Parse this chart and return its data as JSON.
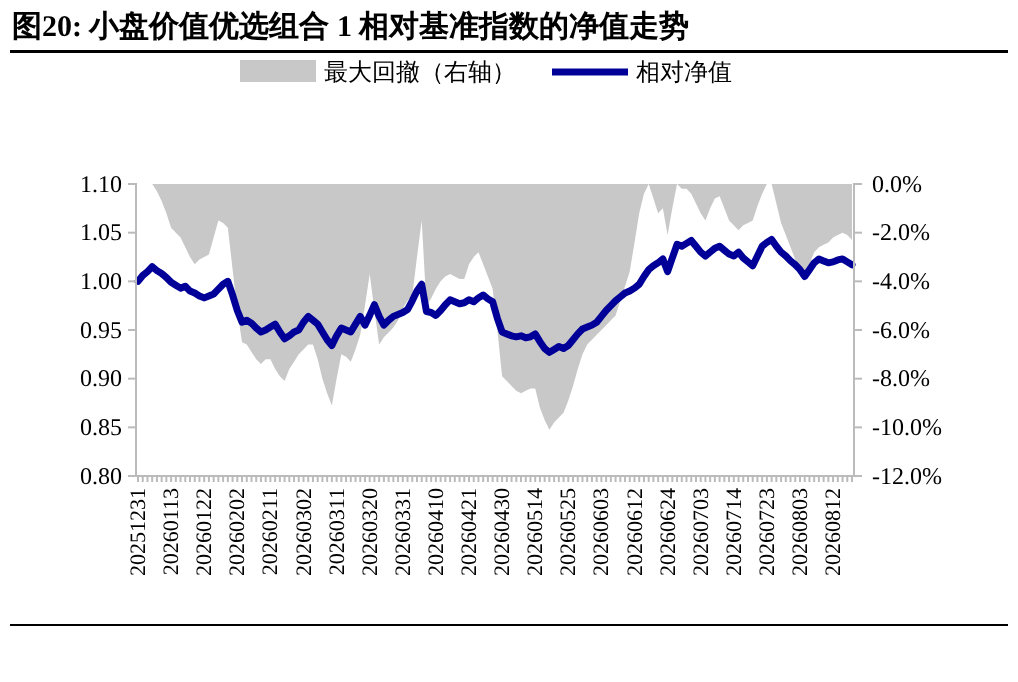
{
  "chart_data": {
    "type": "line",
    "title": "图20:  小盘价值优选组合 1 相对基准指数的净值走势",
    "categories": [
      "20251231",
      null,
      null,
      null,
      null,
      null,
      null,
      "20260113",
      null,
      null,
      null,
      null,
      null,
      null,
      "20260122",
      null,
      null,
      null,
      null,
      null,
      null,
      "20260202",
      null,
      null,
      null,
      null,
      null,
      null,
      "20260211",
      null,
      null,
      null,
      null,
      null,
      null,
      "20260302",
      null,
      null,
      null,
      null,
      null,
      null,
      "20260311",
      null,
      null,
      null,
      null,
      null,
      null,
      "20260320",
      null,
      null,
      null,
      null,
      null,
      null,
      "20260331",
      null,
      null,
      null,
      null,
      null,
      null,
      "20260410",
      null,
      null,
      null,
      null,
      null,
      null,
      "20260421",
      null,
      null,
      null,
      null,
      null,
      null,
      "20260430",
      null,
      null,
      null,
      null,
      null,
      null,
      "20260514",
      null,
      null,
      null,
      null,
      null,
      null,
      "20260525",
      null,
      null,
      null,
      null,
      null,
      null,
      "20260603",
      null,
      null,
      null,
      null,
      null,
      null,
      "20260612",
      null,
      null,
      null,
      null,
      null,
      null,
      "20260624",
      null,
      null,
      null,
      null,
      null,
      null,
      "20260703",
      null,
      null,
      null,
      null,
      null,
      null,
      "20260714",
      null,
      null,
      null,
      null,
      null,
      null,
      "20260723",
      null,
      null,
      null,
      null,
      null,
      null,
      "20260803",
      null,
      null,
      null,
      null,
      null,
      null,
      "20260812",
      null,
      null,
      null,
      null
    ],
    "series": [
      {
        "name": "最大回撤（右轴）",
        "type": "area",
        "axis": "y2",
        "color": "#c8c8c8",
        "values": [
          0,
          0,
          0,
          0,
          -0.3,
          -0.7,
          -1.2,
          -1.8,
          -2.0,
          -2.2,
          -2.6,
          -3.0,
          -3.3,
          -3.1,
          -3.0,
          -2.9,
          -2.2,
          -1.5,
          -1.6,
          -1.8,
          -3.5,
          -5.2,
          -6.5,
          -6.6,
          -6.9,
          -7.2,
          -7.4,
          -7.2,
          -7.2,
          -7.6,
          -7.9,
          -8.1,
          -7.6,
          -7.3,
          -7.0,
          -6.8,
          -6.6,
          -6.6,
          -7.2,
          -8.0,
          -8.6,
          -9.1,
          -8.0,
          -7.0,
          -7.1,
          -7.3,
          -6.8,
          -6.2,
          -5.0,
          -3.7,
          -5.2,
          -6.6,
          -6.3,
          -6.1,
          -5.9,
          -5.6,
          -5.1,
          -4.8,
          -4.6,
          -3.0,
          -1.5,
          -5.0,
          -4.7,
          -4.3,
          -4.0,
          -3.8,
          -3.7,
          -3.8,
          -3.9,
          -3.9,
          -3.3,
          -3.0,
          -2.8,
          -3.3,
          -3.8,
          -4.3,
          -6.0,
          -7.9,
          -8.1,
          -8.3,
          -8.5,
          -8.6,
          -8.5,
          -8.4,
          -8.4,
          -9.2,
          -9.7,
          -10.1,
          -9.8,
          -9.6,
          -9.4,
          -8.9,
          -8.3,
          -7.6,
          -7.0,
          -6.6,
          -6.4,
          -6.2,
          -6.0,
          -5.8,
          -5.6,
          -5.4,
          -4.8,
          -4.2,
          -3.6,
          -2.4,
          -1.2,
          -0.4,
          0,
          -0.6,
          -1.2,
          -1.0,
          -2.1,
          -1.0,
          0,
          -0.2,
          -0.2,
          -0.4,
          -0.8,
          -1.2,
          -1.5,
          -1.0,
          -0.6,
          -0.5,
          -1.0,
          -1.5,
          -1.7,
          -1.9,
          -1.7,
          -1.6,
          -1.5,
          -0.9,
          -0.4,
          0,
          0,
          -0.8,
          -1.6,
          -2.1,
          -2.6,
          -3.1,
          -3.5,
          -3.9,
          -3.3,
          -2.8,
          -2.6,
          -2.5,
          -2.4,
          -2.2,
          -2.1,
          -2.0,
          -2.1,
          -2.3
        ]
      },
      {
        "name": "相对净值",
        "color": "#000099",
        "values": [
          1.0,
          1.006,
          1.01,
          1.015,
          1.011,
          1.008,
          1.004,
          0.999,
          0.996,
          0.993,
          0.995,
          0.99,
          0.988,
          0.985,
          0.983,
          0.985,
          0.987,
          0.992,
          0.997,
          1.0,
          0.986,
          0.97,
          0.958,
          0.96,
          0.957,
          0.952,
          0.948,
          0.95,
          0.953,
          0.956,
          0.948,
          0.941,
          0.944,
          0.948,
          0.95,
          0.958,
          0.964,
          0.96,
          0.956,
          0.948,
          0.94,
          0.934,
          0.944,
          0.952,
          0.95,
          0.948,
          0.956,
          0.964,
          0.955,
          0.965,
          0.976,
          0.964,
          0.955,
          0.96,
          0.964,
          0.966,
          0.968,
          0.971,
          0.98,
          0.99,
          0.997,
          0.969,
          0.968,
          0.965,
          0.97,
          0.976,
          0.981,
          0.979,
          0.977,
          0.978,
          0.981,
          0.979,
          0.983,
          0.986,
          0.982,
          0.979,
          0.962,
          0.948,
          0.946,
          0.944,
          0.943,
          0.944,
          0.942,
          0.943,
          0.946,
          0.938,
          0.931,
          0.927,
          0.93,
          0.933,
          0.931,
          0.934,
          0.94,
          0.946,
          0.951,
          0.953,
          0.955,
          0.958,
          0.964,
          0.97,
          0.975,
          0.98,
          0.984,
          0.988,
          0.99,
          0.993,
          0.997,
          1.005,
          1.012,
          1.016,
          1.019,
          1.023,
          1.01,
          1.024,
          1.038,
          1.036,
          1.039,
          1.042,
          1.036,
          1.03,
          1.026,
          1.03,
          1.034,
          1.036,
          1.032,
          1.028,
          1.026,
          1.03,
          1.024,
          1.02,
          1.016,
          1.026,
          1.036,
          1.04,
          1.043,
          1.036,
          1.03,
          1.026,
          1.021,
          1.017,
          1.012,
          1.005,
          1.012,
          1.019,
          1.023,
          1.021,
          1.019,
          1.02,
          1.022,
          1.023,
          1.02,
          1.017
        ]
      }
    ],
    "ylim": [
      0.8,
      1.1
    ],
    "yticks": [
      {
        "value": 0.8,
        "label": "0.80"
      },
      {
        "value": 0.85,
        "label": "0.85"
      },
      {
        "value": 0.9,
        "label": "0.90"
      },
      {
        "value": 0.95,
        "label": "0.95"
      },
      {
        "value": 1.0,
        "label": "1.00"
      },
      {
        "value": 1.05,
        "label": "1.05"
      },
      {
        "value": 1.1,
        "label": "1.10"
      }
    ],
    "y2lim": [
      -12,
      0
    ],
    "y2ticks": [
      {
        "value": -12,
        "label": "-12.0%"
      },
      {
        "value": -10,
        "label": "-10.0%"
      },
      {
        "value": -8,
        "label": "-8.0%"
      },
      {
        "value": -6,
        "label": "-6.0%"
      },
      {
        "value": -4,
        "label": "-4.0%"
      },
      {
        "value": -2,
        "label": "-2.0%"
      },
      {
        "value": 0,
        "label": "0.0%"
      }
    ],
    "grid": false,
    "legend": "top",
    "line_style": "solid",
    "marker": "none"
  }
}
